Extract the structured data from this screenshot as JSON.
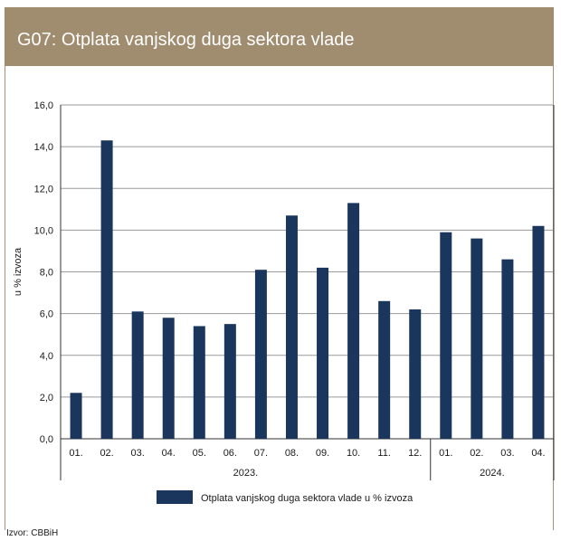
{
  "title": "G07: Otplata vanjskog duga sektora vlade",
  "source": "Izvor: CBBiH",
  "colors": {
    "header_bg": "#a08c6f",
    "bar": "#1b365d",
    "grid": "#9a9a9a"
  },
  "chart_data": {
    "type": "bar",
    "categories": [
      "01.",
      "02.",
      "03.",
      "04.",
      "05.",
      "06.",
      "07.",
      "08.",
      "09.",
      "10.",
      "11.",
      "12.",
      "01.",
      "02.",
      "03.",
      "04."
    ],
    "groups": [
      {
        "label": "2023.",
        "count": 12
      },
      {
        "label": "2024.",
        "count": 4
      }
    ],
    "series": [
      {
        "name": "Otplata vanjskog duga sektora vlade u % izvoza",
        "values": [
          2.2,
          14.3,
          6.1,
          5.8,
          5.4,
          5.5,
          8.1,
          10.7,
          8.2,
          11.3,
          6.6,
          6.2,
          9.9,
          9.6,
          8.6,
          10.2
        ]
      }
    ],
    "ylabel": "u % izvoza",
    "xlabel": "",
    "ylim": [
      0,
      16
    ],
    "yticks": [
      "0,0",
      "2,0",
      "4,0",
      "6,0",
      "8,0",
      "10,0",
      "12,0",
      "14,0",
      "16,0"
    ],
    "grid": true,
    "legend_position": "bottom"
  }
}
